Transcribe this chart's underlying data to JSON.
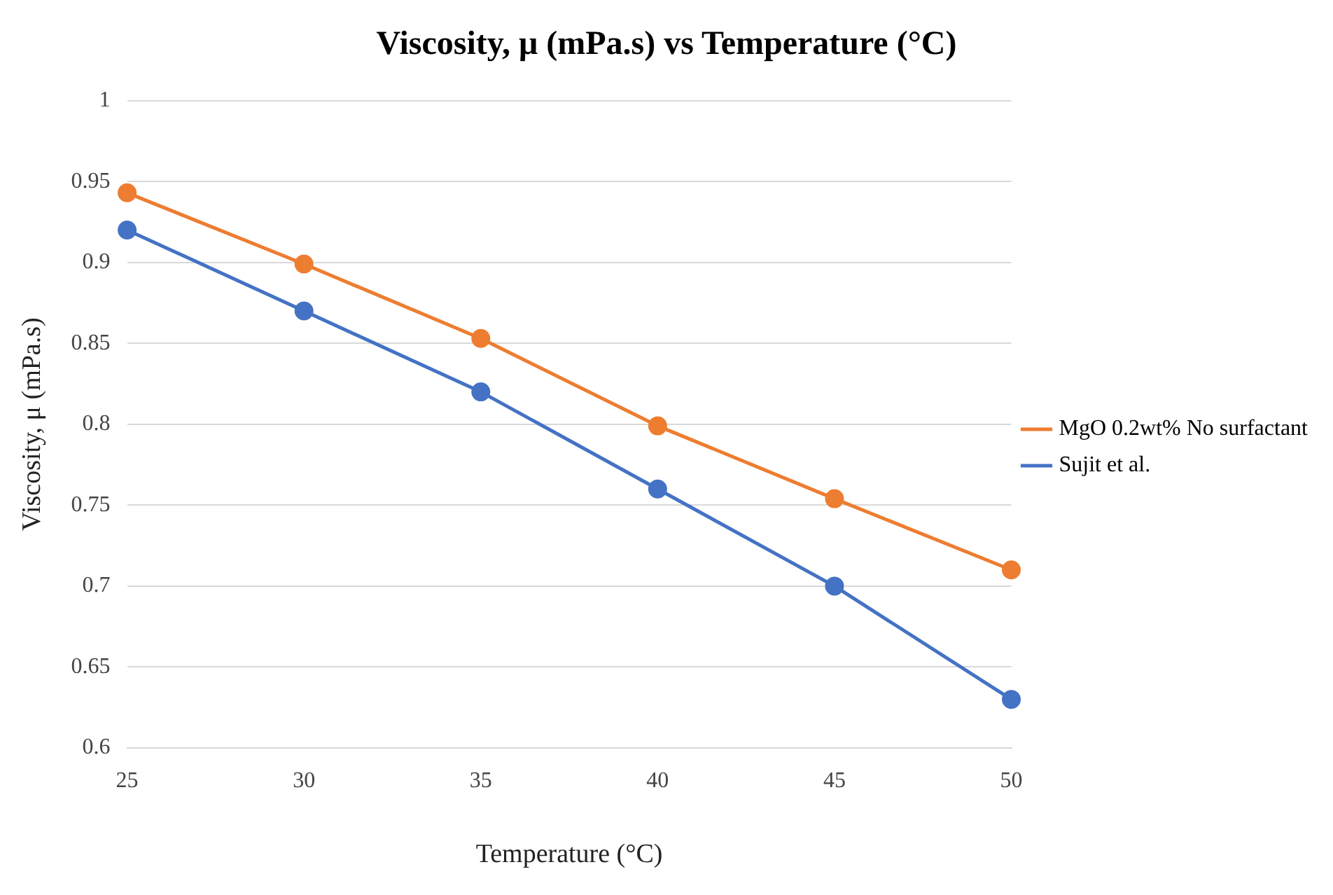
{
  "chart_data": {
    "type": "line",
    "title": "Viscosity, μ (mPa.s) vs Temperature (°C)",
    "xlabel": "Temperature (°C)",
    "ylabel": "Viscosity, μ (mPa.s)",
    "categories": [
      "25",
      "30",
      "35",
      "40",
      "45",
      "50"
    ],
    "series": [
      {
        "name": "MgO 0.2wt% No surfactant",
        "color": "#ed7d31",
        "values": [
          0.943,
          0.899,
          0.853,
          0.799,
          0.754,
          0.71
        ]
      },
      {
        "name": "Sujit et al.",
        "color": "#4472c4",
        "values": [
          0.92,
          0.87,
          0.82,
          0.76,
          0.7,
          0.63
        ]
      }
    ],
    "ylim": [
      0.6,
      1
    ],
    "yticks": [
      0.6,
      0.65,
      0.7,
      0.75,
      0.8,
      0.85,
      0.9,
      0.95,
      1
    ],
    "grid": "y",
    "legend": "right",
    "marker": "circle",
    "line_style": "solid"
  }
}
